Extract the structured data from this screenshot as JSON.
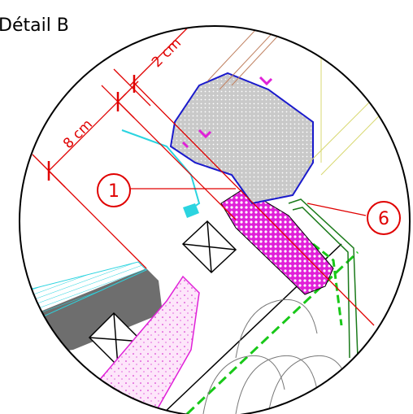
{
  "title": "Détail B",
  "dimensions": [
    {
      "label": "2 cm"
    },
    {
      "label": "8 cm"
    }
  ],
  "callouts": [
    {
      "label": "1"
    },
    {
      "label": "6"
    }
  ]
}
